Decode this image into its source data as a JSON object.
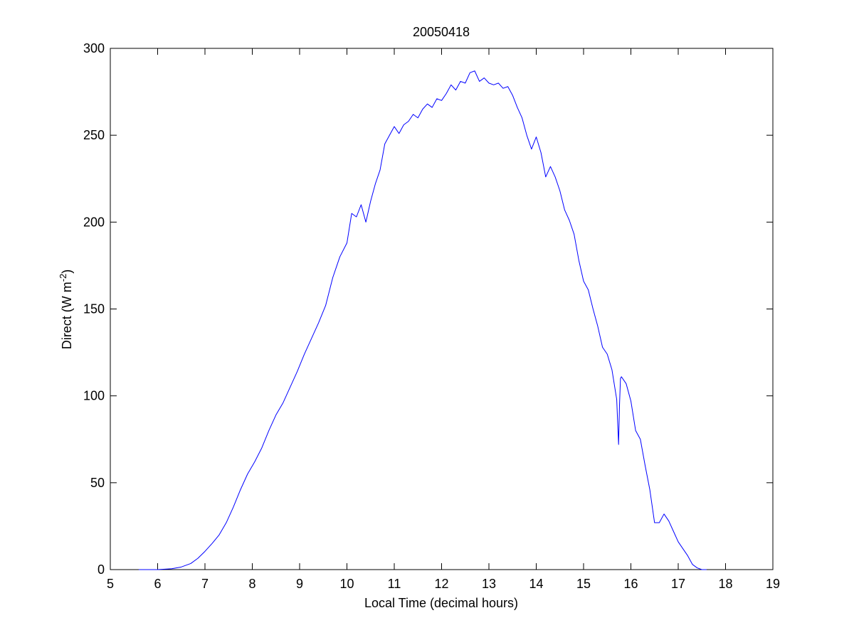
{
  "chart_data": {
    "type": "line",
    "title": "20050418",
    "xlabel": "Local Time (decimal hours)",
    "ylabel": {
      "text": "Direct (W m",
      "superscript": "-2",
      "suffix": ")"
    },
    "xlim": [
      5,
      19
    ],
    "ylim": [
      0,
      300
    ],
    "xticks": [
      5,
      6,
      7,
      8,
      9,
      10,
      11,
      12,
      13,
      14,
      15,
      16,
      17,
      18,
      19
    ],
    "yticks": [
      0,
      50,
      100,
      150,
      200,
      250,
      300
    ],
    "grid": false,
    "line_color": "#0000ff",
    "series": [
      {
        "x": [
          5.6,
          6.0,
          6.3,
          6.5,
          6.7,
          6.85,
          7.0,
          7.15,
          7.3,
          7.45,
          7.6,
          7.75,
          7.9,
          8.05,
          8.2,
          8.35,
          8.5,
          8.65,
          8.8,
          8.95,
          9.1,
          9.25,
          9.4,
          9.55,
          9.7,
          9.85,
          10.0,
          10.1,
          10.2,
          10.3,
          10.4,
          10.5,
          10.6,
          10.7,
          10.8,
          10.9,
          11.0,
          11.1,
          11.2,
          11.3,
          11.4,
          11.5,
          11.6,
          11.7,
          11.8,
          11.9,
          12.0,
          12.1,
          12.2,
          12.3,
          12.4,
          12.5,
          12.6,
          12.7,
          12.8,
          12.9,
          13.0,
          13.1,
          13.2,
          13.3,
          13.4,
          13.5,
          13.6,
          13.7,
          13.8,
          13.9,
          14.0,
          14.1,
          14.2,
          14.3,
          14.4,
          14.5,
          14.6,
          14.7,
          14.8,
          14.9,
          15.0,
          15.1,
          15.2,
          15.3,
          15.4,
          15.5,
          15.6,
          15.7,
          15.74,
          15.76,
          15.78,
          15.8,
          15.9,
          16.0,
          16.1,
          16.2,
          16.3,
          16.4,
          16.5,
          16.6,
          16.7,
          16.8,
          16.9,
          17.0,
          17.1,
          17.2,
          17.3,
          17.4,
          17.5,
          17.6
        ],
        "y": [
          0,
          0,
          0.5,
          1.5,
          3.5,
          6.5,
          10.5,
          15,
          20,
          27,
          36,
          46,
          55,
          62,
          70,
          80,
          89,
          96,
          105,
          114,
          124,
          133,
          142,
          152,
          168,
          180,
          188,
          205,
          203,
          210,
          200,
          212,
          222,
          230,
          245,
          250,
          255,
          251,
          256,
          258,
          262,
          260,
          265,
          268,
          266,
          271,
          270,
          274,
          279,
          276,
          281,
          280,
          286,
          287,
          281,
          283,
          280,
          279,
          280,
          277,
          278,
          273,
          266,
          260,
          250,
          242,
          249,
          240,
          226,
          232,
          226,
          218,
          207,
          201,
          193,
          178,
          166,
          161,
          150,
          140,
          128,
          124,
          115,
          98,
          72,
          95,
          110,
          111,
          107,
          97,
          80,
          75,
          60,
          46,
          27,
          27,
          32,
          28,
          22,
          16,
          12,
          8,
          3,
          1,
          0,
          0
        ]
      }
    ]
  }
}
